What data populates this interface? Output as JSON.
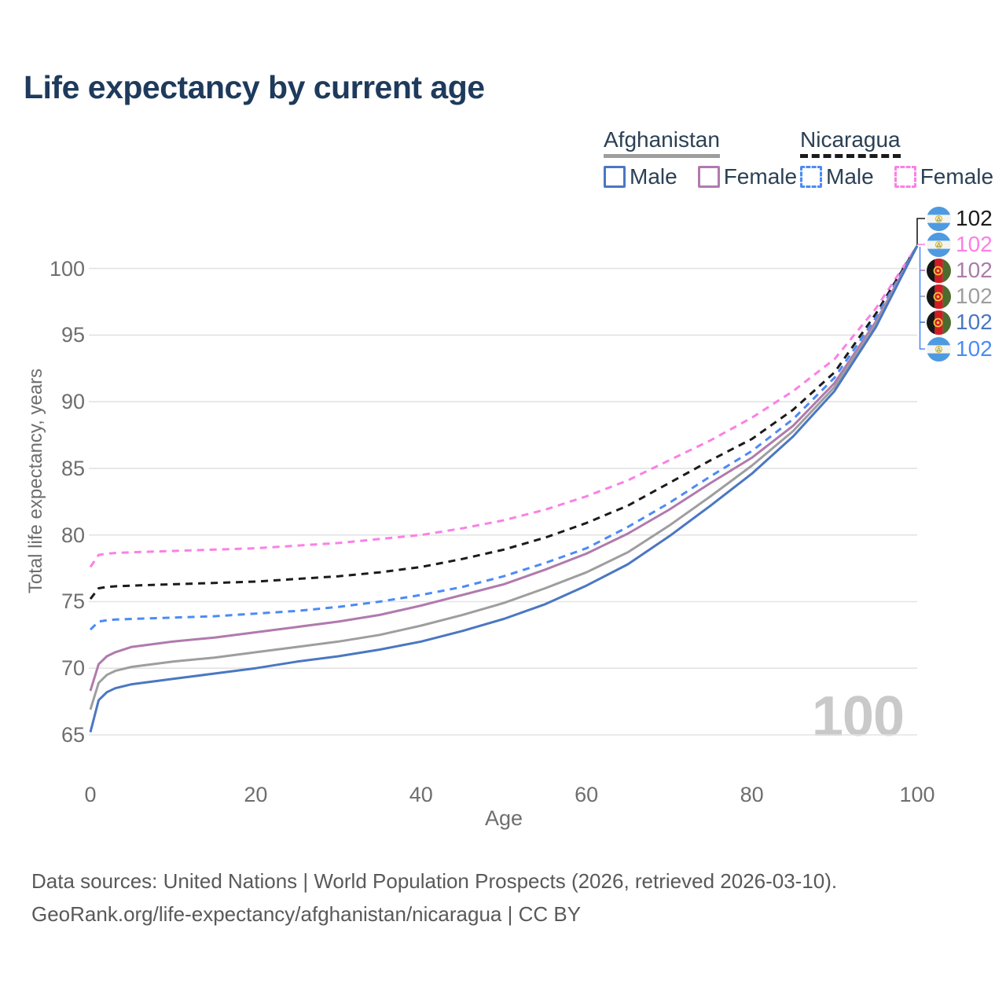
{
  "title": "Life expectancy by current age",
  "watermark": "100",
  "legend": {
    "groups": [
      {
        "country": "Afghanistan",
        "series": "Afghanistan",
        "items": [
          {
            "label": "Male",
            "series": "Afghanistan Male"
          },
          {
            "label": "Female",
            "series": "Afghanistan Female"
          }
        ]
      },
      {
        "country": "Nicaragua",
        "series": "Nicaragua",
        "items": [
          {
            "label": "Male",
            "series": "Nicaragua Male"
          },
          {
            "label": "Female",
            "series": "Nicaragua Female"
          }
        ]
      }
    ]
  },
  "chart_data": {
    "type": "line",
    "title": "Life expectancy by current age",
    "xlabel": "Age",
    "ylabel": "Total life expectancy, years",
    "xlim": [
      0,
      100
    ],
    "ylim": [
      65,
      102
    ],
    "xticks": [
      0,
      20,
      40,
      60,
      80,
      100
    ],
    "yticks": [
      65,
      70,
      75,
      80,
      85,
      90,
      95,
      100
    ],
    "grid": "horizontal",
    "legend_position": "top-right",
    "x": [
      0,
      1,
      2,
      3,
      5,
      10,
      15,
      20,
      25,
      30,
      35,
      40,
      45,
      50,
      55,
      60,
      65,
      70,
      75,
      80,
      85,
      90,
      95,
      100
    ],
    "series": [
      {
        "name": "Nicaragua Female",
        "style": "dashed",
        "color": "#fb80e5",
        "values": [
          77.6,
          78.5,
          78.6,
          78.65,
          78.7,
          78.8,
          78.9,
          79.0,
          79.2,
          79.4,
          79.7,
          80.0,
          80.5,
          81.1,
          81.9,
          82.9,
          84.1,
          85.6,
          87.1,
          88.8,
          90.8,
          93.2,
          97.0,
          101.7
        ]
      },
      {
        "name": "Nicaragua",
        "style": "dashed",
        "color": "#1b1b1b",
        "values": [
          75.2,
          76.0,
          76.1,
          76.15,
          76.2,
          76.3,
          76.4,
          76.5,
          76.7,
          76.9,
          77.2,
          77.6,
          78.2,
          78.9,
          79.8,
          80.9,
          82.2,
          83.9,
          85.6,
          87.2,
          89.4,
          92.2,
          96.6,
          101.7
        ]
      },
      {
        "name": "Nicaragua Male",
        "style": "dashed",
        "color": "#4b8bf5",
        "values": [
          72.9,
          73.5,
          73.6,
          73.65,
          73.7,
          73.8,
          73.9,
          74.1,
          74.3,
          74.6,
          75.0,
          75.5,
          76.1,
          76.9,
          77.9,
          79.0,
          80.6,
          82.4,
          84.4,
          86.3,
          88.7,
          91.8,
          96.3,
          101.7
        ]
      },
      {
        "name": "Afghanistan Female",
        "style": "solid",
        "color": "#b07aae",
        "values": [
          68.3,
          70.3,
          70.9,
          71.2,
          71.6,
          72.0,
          72.3,
          72.7,
          73.1,
          73.5,
          74.0,
          74.7,
          75.5,
          76.3,
          77.4,
          78.6,
          80.1,
          81.9,
          83.9,
          85.8,
          88.2,
          91.4,
          96.0,
          101.7
        ]
      },
      {
        "name": "Afghanistan",
        "style": "solid",
        "color": "#9e9e9e",
        "values": [
          66.9,
          68.9,
          69.5,
          69.8,
          70.1,
          70.5,
          70.8,
          71.2,
          71.6,
          72.0,
          72.5,
          73.2,
          74.0,
          74.9,
          76.0,
          77.2,
          78.7,
          80.7,
          82.9,
          85.2,
          87.8,
          91.1,
          95.8,
          101.7
        ]
      },
      {
        "name": "Afghanistan Male",
        "style": "solid",
        "color": "#4a77c2",
        "values": [
          65.2,
          67.6,
          68.2,
          68.5,
          68.8,
          69.2,
          69.6,
          70.0,
          70.5,
          70.9,
          71.4,
          72.0,
          72.8,
          73.7,
          74.8,
          76.2,
          77.8,
          79.9,
          82.2,
          84.6,
          87.4,
          90.8,
          95.6,
          101.7
        ]
      }
    ]
  },
  "end_labels": [
    {
      "flag": "nicaragua",
      "series": "Nicaragua",
      "value": "102",
      "color": "#1b1b1b"
    },
    {
      "flag": "nicaragua",
      "series": "Nicaragua Female",
      "value": "102",
      "color": "#fb80e5"
    },
    {
      "flag": "afghanistan",
      "series": "Afghanistan Female",
      "value": "102",
      "color": "#ab7bab"
    },
    {
      "flag": "afghanistan",
      "series": "Afghanistan",
      "value": "102",
      "color": "#9e9e9e"
    },
    {
      "flag": "afghanistan",
      "series": "Afghanistan Male",
      "value": "102",
      "color": "#4a77c2"
    },
    {
      "flag": "nicaragua",
      "series": "Nicaragua Male",
      "value": "102",
      "color": "#4b8bf5"
    }
  ],
  "footer": {
    "line1": "Data sources: United Nations | World Population Prospects (2026, retrieved 2026-03-10).",
    "line2": "GeoRank.org/life-expectancy/afghanistan/nicaragua | CC BY"
  }
}
